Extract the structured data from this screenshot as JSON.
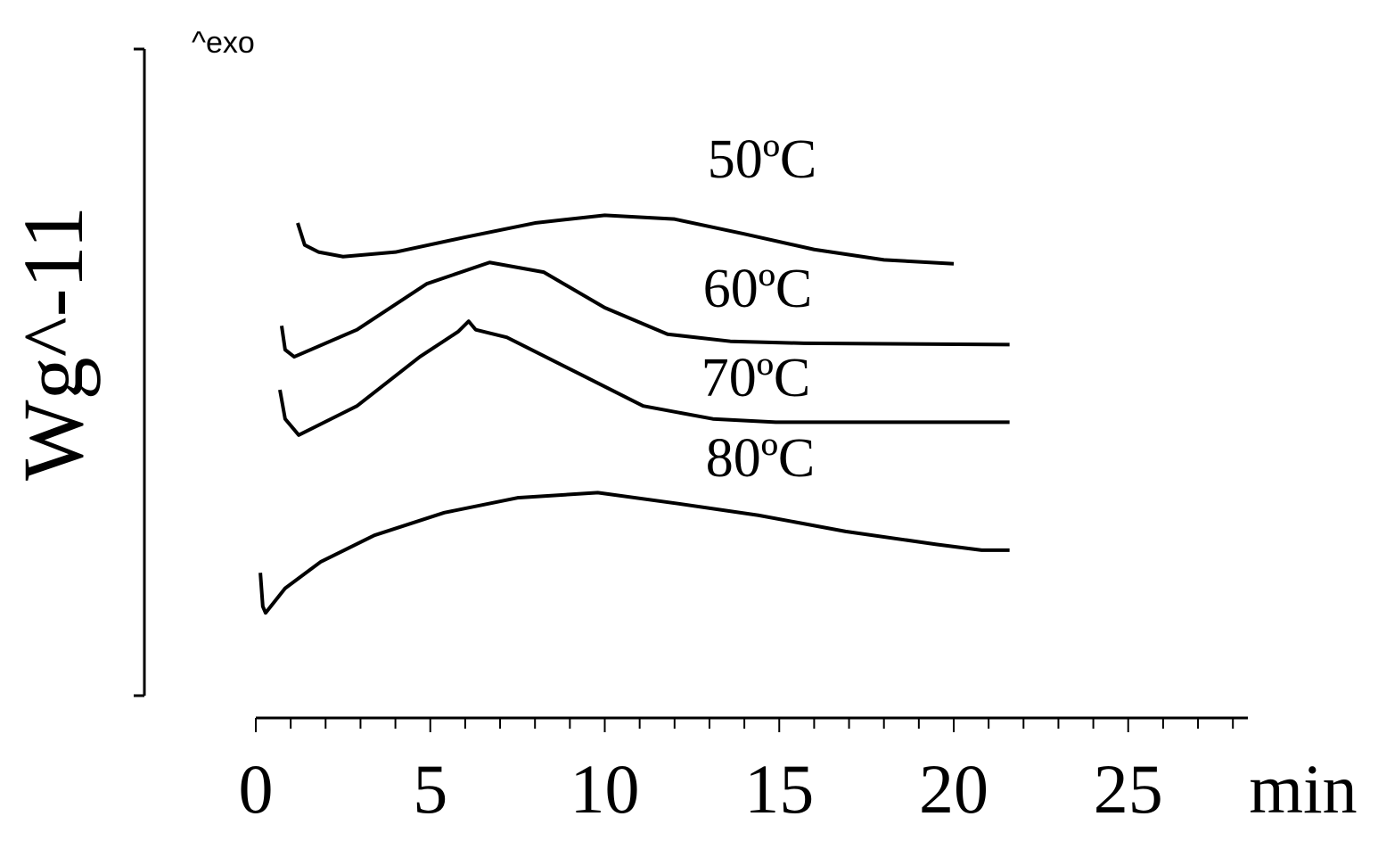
{
  "chart_data": {
    "type": "line",
    "ylabel": "Wg^-11",
    "annotation": "^exo",
    "xlabel": "min",
    "xlim": [
      0,
      28.5
    ],
    "ylim": [
      0,
      100
    ],
    "xticks": [
      0,
      5,
      10,
      15,
      20,
      25
    ],
    "xminor_ticks": [
      1,
      2,
      3,
      4,
      6,
      7,
      8,
      9,
      11,
      12,
      13,
      14,
      16,
      17,
      18,
      19,
      21,
      22,
      23,
      24,
      26,
      27,
      28
    ],
    "series": [
      {
        "name": "50ºC",
        "color": "#000000",
        "x": [
          1.2,
          1.4,
          1.8,
          2.5,
          4,
          6,
          8,
          10,
          12,
          14,
          16,
          18,
          20
        ],
        "values": [
          73.1,
          69.7,
          68.6,
          67.9,
          68.6,
          70.9,
          73.1,
          74.3,
          73.7,
          71.4,
          69.0,
          67.4,
          66.8
        ]
      },
      {
        "name": "60ºC",
        "color": "#000000",
        "x": [
          0.74,
          0.84,
          1.1,
          2.9,
          4.9,
          6.7,
          8.25,
          10,
          11.8,
          13.6,
          15.7,
          21.6
        ],
        "values": [
          57.2,
          53.5,
          52.4,
          56.6,
          63.7,
          67.0,
          65.5,
          60.0,
          55.9,
          54.8,
          54.5,
          54.3
        ]
      },
      {
        "name": "70ºC",
        "color": "#000000",
        "x": [
          0.69,
          0.84,
          1.23,
          2.9,
          4.7,
          5.8,
          6.1,
          6.3,
          7.2,
          9.3,
          11.1,
          13.1,
          14.9,
          21.6
        ],
        "values": [
          47.3,
          42.8,
          40.3,
          44.8,
          52.4,
          56.3,
          57.9,
          56.6,
          55.4,
          49.7,
          44.8,
          42.8,
          42.3,
          42.3
        ]
      },
      {
        "name": "80ºC",
        "color": "#000000",
        "x": [
          0.13,
          0.2,
          0.28,
          0.84,
          1.86,
          3.4,
          5.4,
          7.5,
          9.8,
          12.1,
          14.4,
          16.9,
          19.5,
          20.8,
          21.6
        ],
        "values": [
          19.0,
          13.8,
          12.8,
          16.6,
          20.7,
          24.8,
          28.3,
          30.6,
          31.4,
          29.7,
          27.9,
          25.4,
          23.4,
          22.5,
          22.5
        ]
      }
    ]
  }
}
